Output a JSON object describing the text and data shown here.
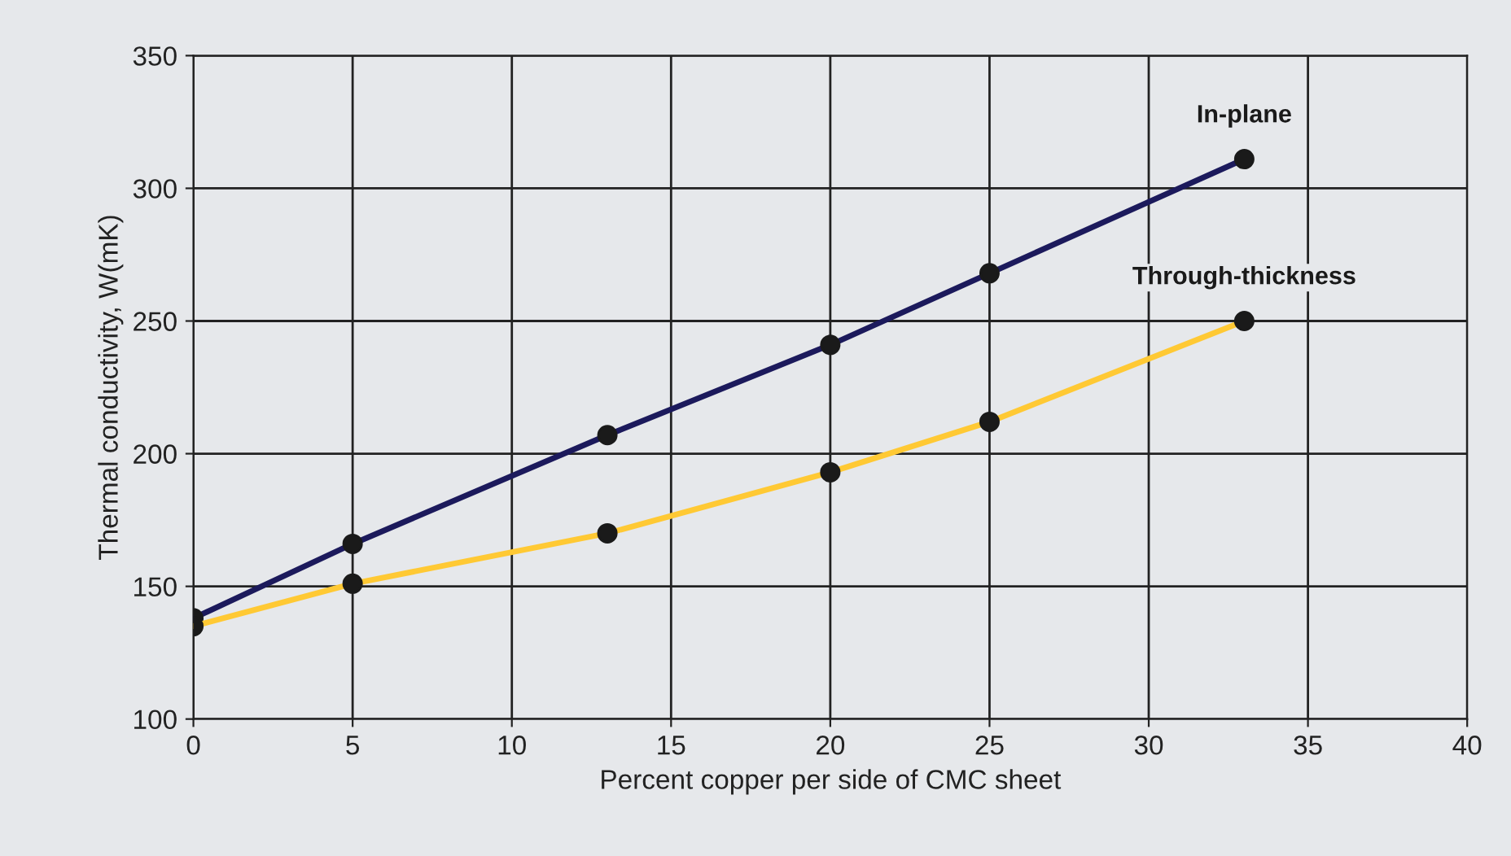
{
  "chart_data": {
    "type": "line",
    "xlabel": "Percent copper per side of CMC sheet",
    "ylabel": "Thermal conductivity, W(mK)",
    "xlim": [
      0,
      40
    ],
    "xticks": [
      0,
      5,
      10,
      15,
      20,
      25,
      30,
      35,
      40
    ],
    "ylim": [
      100,
      350
    ],
    "yticks": [
      100,
      150,
      200,
      250,
      300,
      350
    ],
    "grid": true,
    "marker": "circle",
    "line_style": "solid",
    "series": [
      {
        "name": "In-plane",
        "color": "#1c1a5c",
        "x": [
          0,
          5,
          13,
          20,
          25,
          33
        ],
        "values": [
          138,
          166,
          207,
          241,
          268,
          311
        ]
      },
      {
        "name": "Through-thickness",
        "color": "#ffc934",
        "x": [
          0,
          5,
          13,
          20,
          25,
          33
        ],
        "values": [
          135,
          151,
          170,
          193,
          212,
          250
        ]
      }
    ]
  }
}
